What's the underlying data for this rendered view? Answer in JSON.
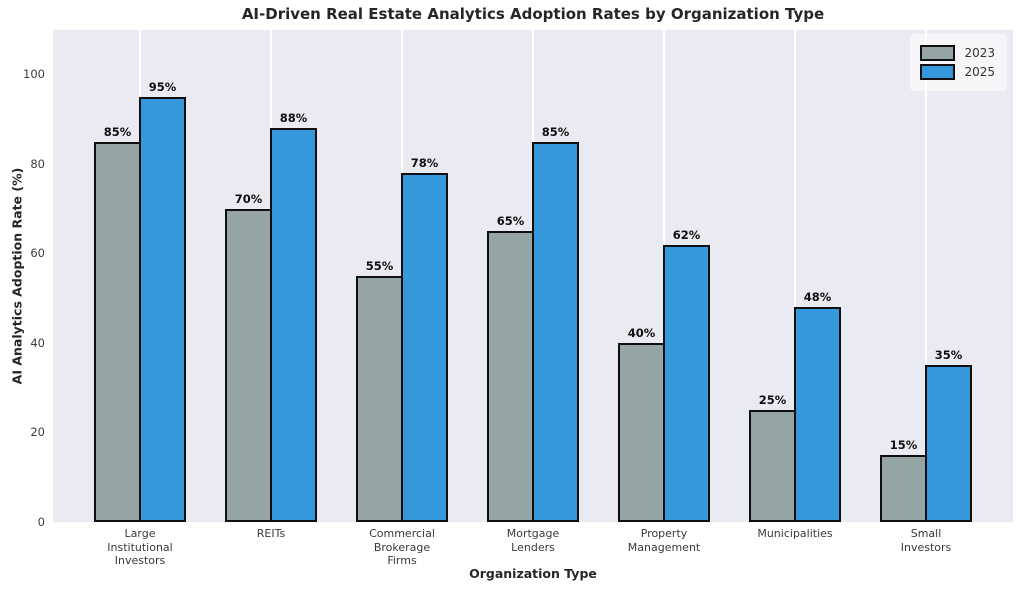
{
  "chart_data": {
    "type": "bar",
    "title": "AI-Driven Real Estate Analytics Adoption Rates by Organization Type",
    "xlabel": "Organization Type",
    "ylabel": "AI Analytics Adoption Rate (%)",
    "categories": [
      "Large\nInstitutional\nInvestors",
      "REITs",
      "Commercial\nBrokerage\nFirms",
      "Mortgage\nLenders",
      "Property\nManagement",
      "Municipalities",
      "Small\nInvestors"
    ],
    "series": [
      {
        "name": "2023",
        "color": "#95a5a6",
        "values": [
          85,
          70,
          55,
          65,
          40,
          25,
          15
        ]
      },
      {
        "name": "2025",
        "color": "#3498db",
        "values": [
          95,
          88,
          78,
          85,
          62,
          48,
          35
        ]
      }
    ],
    "value_suffix": "%",
    "yticks": [
      0,
      20,
      40,
      60,
      80,
      100
    ],
    "ylim": [
      0,
      110
    ],
    "grid": "vertical-white",
    "legend_position": "top-right",
    "colors": {
      "plot_bg": "#eaeaf2",
      "figure_bg": "#ffffff",
      "bar_edge": "#0f0f0f",
      "gridline": "#ffffff",
      "bar_2023": "#95a5a6",
      "bar_2025": "#3498db"
    }
  }
}
